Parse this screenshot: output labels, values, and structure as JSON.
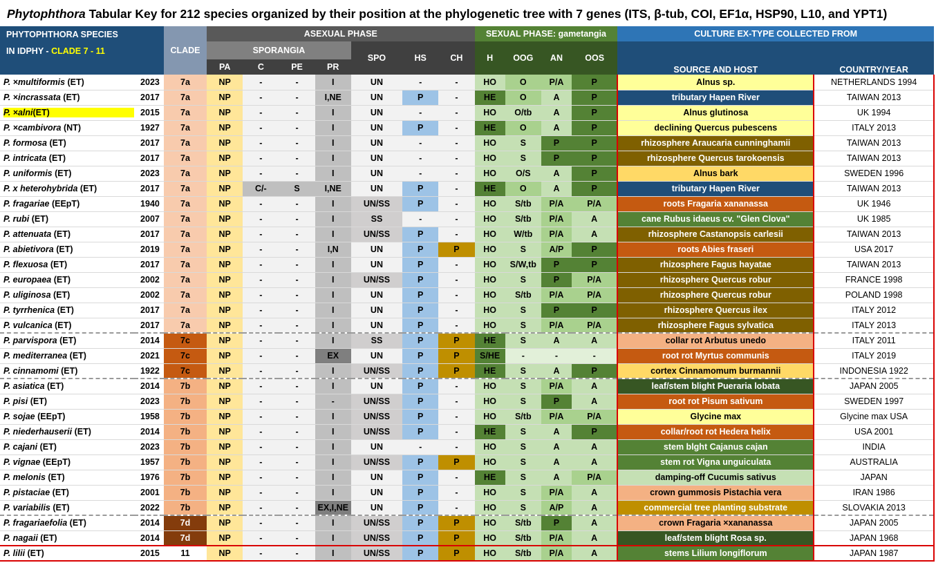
{
  "title": {
    "genus": "Phytophthora",
    "rest": " Tabular Key for 212 species organized by their position at the phylogenetic tree with 7 genes (ITS, β-tub, COI, EF1α, HSP90, L10, and YPT1)"
  },
  "header": {
    "species_line1": "PHYTOPHTHORA  SPECIES",
    "species_line2a": "IN IDPHY -  ",
    "species_line2b": "CLADE 7 - 11",
    "clade": "CLADE",
    "asexual": "ASEXUAL PHASE",
    "sporangia": "SPORANGIA",
    "sexual": "SEXUAL PHASE: gametangia",
    "culture": "CULTURE EX-TYPE COLLECTED FROM",
    "source": "SOURCE AND HOST",
    "country": "COUNTRY/YEAR",
    "cols": {
      "pa": "PA",
      "c": "C",
      "pe": "PE",
      "pr": "PR",
      "spo": "SPO",
      "hs": "HS",
      "ch": "CH",
      "h": "H",
      "oog": "OOG",
      "an": "AN",
      "oos": "OOS"
    }
  },
  "rows": [
    {
      "sp": "P. ×multiformis",
      "tag": "(ET)",
      "yr": "2023",
      "clade": "7a",
      "pa": "NP",
      "c": "-",
      "pe": "-",
      "pr": "I",
      "spo": "UN",
      "hs": "-",
      "ch": "-",
      "h": "HO",
      "oog": "O",
      "an": "P/A",
      "oos": "P",
      "src": "Alnus sp.",
      "ctry": "NETHERLANDS 1994"
    },
    {
      "sp": "P. ×incrassata",
      "tag": "(ET)",
      "yr": "2017",
      "clade": "7a",
      "pa": "NP",
      "c": "-",
      "pe": "-",
      "pr": "I,NE",
      "spo": "UN",
      "hs": "P",
      "ch": "-",
      "h": "HE",
      "oog": "O",
      "an": "A",
      "oos": "P",
      "src": "tributary Hapen River",
      "ctry": "TAIWAN 2013"
    },
    {
      "sp": "P. ×alni",
      "tag": "(ET)",
      "yr": "2015",
      "clade": "7a",
      "pa": "NP",
      "c": "-",
      "pe": "-",
      "pr": "I",
      "spo": "UN",
      "hs": "-",
      "ch": "-",
      "h": "HO",
      "oog": "O/tb",
      "an": "A",
      "oos": "P",
      "src": "Alnus glutinosa",
      "ctry": "UK 1994"
    },
    {
      "sp": "P. ×cambivora",
      "tag": "(NT)",
      "yr": "1927",
      "clade": "7a",
      "pa": "NP",
      "c": "-",
      "pe": "-",
      "pr": "I",
      "spo": "UN",
      "hs": "P",
      "ch": "-",
      "h": "HE",
      "oog": "O",
      "an": "A",
      "oos": "P",
      "src": "declining Quercus pubescens",
      "ctry": "ITALY 2013"
    },
    {
      "sp": "P. formosa",
      "tag": "(ET)",
      "yr": "2017",
      "clade": "7a",
      "pa": "NP",
      "c": "-",
      "pe": "-",
      "pr": "I",
      "spo": "UN",
      "hs": "-",
      "ch": "-",
      "h": "HO",
      "oog": "S",
      "an": "P",
      "oos": "P",
      "src": "rhizosphere Araucaria cunninghamii",
      "ctry": "TAIWAN 2013"
    },
    {
      "sp": "P. intricata",
      "tag": "(ET)",
      "yr": "2017",
      "clade": "7a",
      "pa": "NP",
      "c": "-",
      "pe": "-",
      "pr": "I",
      "spo": "UN",
      "hs": "-",
      "ch": "-",
      "h": "HO",
      "oog": "S",
      "an": "P",
      "oos": "P",
      "src": "rhizosphere Quercus tarokoensis",
      "ctry": "TAIWAN 2013"
    },
    {
      "sp": "P. uniformis",
      "tag": "(ET)",
      "yr": "2023",
      "clade": "7a",
      "pa": "NP",
      "c": "-",
      "pe": "-",
      "pr": "I",
      "spo": "UN",
      "hs": "-",
      "ch": "-",
      "h": "HO",
      "oog": "O/S",
      "an": "A",
      "oos": "P",
      "src": "Alnus bark",
      "ctry": "SWEDEN 1996"
    },
    {
      "sp": "P. x heterohybrida",
      "tag": "(ET)",
      "yr": "2017",
      "clade": "7a",
      "pa": "NP",
      "c": "C/-",
      "pe": "S",
      "pr": "I,NE",
      "spo": "UN",
      "hs": "P",
      "ch": "-",
      "h": "HE",
      "oog": "O",
      "an": "A",
      "oos": "P",
      "src": "tributary Hapen River",
      "ctry": "TAIWAN 2013"
    },
    {
      "sp": "P. fragariae",
      "tag": "(EEpT)",
      "yr": "1940",
      "clade": "7a",
      "pa": "NP",
      "c": "-",
      "pe": "-",
      "pr": "I",
      "spo": "UN/SS",
      "hs": "P",
      "ch": "-",
      "h": "HO",
      "oog": "S/tb",
      "an": "P/A",
      "oos": "P/A",
      "src": "roots Fragaria xananassa",
      "ctry": "UK 1946"
    },
    {
      "sp": "P. rubi",
      "tag": "(ET)",
      "yr": "2007",
      "clade": "7a",
      "pa": "NP",
      "c": "-",
      "pe": "-",
      "pr": "I",
      "spo": "SS",
      "hs": "-",
      "ch": "-",
      "h": "HO",
      "oog": "S/tb",
      "an": "P/A",
      "oos": "A",
      "src": "cane Rubus idaeus cv. \"Glen Clova\"",
      "ctry": "UK 1985"
    },
    {
      "sp": "P. attenuata",
      "tag": "(ET)",
      "yr": "2017",
      "clade": "7a",
      "pa": "NP",
      "c": "-",
      "pe": "-",
      "pr": "I",
      "spo": "UN/SS",
      "hs": "P",
      "ch": "-",
      "h": "HO",
      "oog": "W/tb",
      "an": "P/A",
      "oos": "A",
      "src": "rhizosphere Castanopsis carlesii",
      "ctry": "TAIWAN 2013"
    },
    {
      "sp": "P. abietivora",
      "tag": "(ET)",
      "yr": "2019",
      "clade": "7a",
      "pa": "NP",
      "c": "-",
      "pe": "-",
      "pr": "I,N",
      "spo": "UN",
      "hs": "P",
      "ch": "P",
      "h": "HO",
      "oog": "S",
      "an": "A/P",
      "oos": "P",
      "src": "roots Abies fraseri",
      "ctry": "USA 2017"
    },
    {
      "sp": "P. flexuosa",
      "tag": "(ET)",
      "yr": "2017",
      "clade": "7a",
      "pa": "NP",
      "c": "-",
      "pe": "-",
      "pr": "I",
      "spo": "UN",
      "hs": "P",
      "ch": "-",
      "h": "HO",
      "oog": "S/W,tb",
      "an": "P",
      "oos": "P",
      "src": "rhizosphere Fagus hayatae",
      "ctry": "TAIWAN 2013"
    },
    {
      "sp": "P. europaea",
      "tag": "(ET)",
      "yr": "2002",
      "clade": "7a",
      "pa": "NP",
      "c": "-",
      "pe": "-",
      "pr": "I",
      "spo": "UN/SS",
      "hs": "P",
      "ch": "-",
      "h": "HO",
      "oog": "S",
      "an": "P",
      "oos": "P/A",
      "src": "rhizosphere Quercus robur",
      "ctry": "FRANCE 1998"
    },
    {
      "sp": "P. uliginosa",
      "tag": "(ET)",
      "yr": "2002",
      "clade": "7a",
      "pa": "NP",
      "c": "-",
      "pe": "-",
      "pr": "I",
      "spo": "UN",
      "hs": "P",
      "ch": "-",
      "h": "HO",
      "oog": "S/tb",
      "an": "P/A",
      "oos": "P/A",
      "src": "rhizosphere Quercus robur",
      "ctry": "POLAND 1998"
    },
    {
      "sp": "P. tyrrhenica",
      "tag": "(ET)",
      "yr": "2017",
      "clade": "7a",
      "pa": "NP",
      "c": "-",
      "pe": "-",
      "pr": "I",
      "spo": "UN",
      "hs": "P",
      "ch": "-",
      "h": "HO",
      "oog": "S",
      "an": "P",
      "oos": "P",
      "src": "rhizosphere Quercus ilex",
      "ctry": "ITALY 2012"
    },
    {
      "sp": "P. vulcanica",
      "tag": "(ET)",
      "yr": "2017",
      "clade": "7a",
      "pa": "NP",
      "c": "-",
      "pe": "-",
      "pr": "I",
      "spo": "UN",
      "hs": "P",
      "ch": "-",
      "h": "HO",
      "oog": "S",
      "an": "P/A",
      "oos": "P/A",
      "src": "rhizosphere Fagus sylvatica",
      "ctry": "ITALY 2013"
    },
    {
      "sp": "P. parvispora",
      "tag": "(ET)",
      "yr": "2014",
      "clade": "7c",
      "pa": "NP",
      "c": "-",
      "pe": "-",
      "pr": "I",
      "spo": "SS",
      "hs": "P",
      "ch": "P",
      "h": "HE",
      "oog": "S",
      "an": "A",
      "oos": "A",
      "src": "collar rot Arbutus unedo",
      "ctry": "ITALY 2011"
    },
    {
      "sp": "P. mediterranea",
      "tag": "(ET)",
      "yr": "2021",
      "clade": "7c",
      "pa": "NP",
      "c": "-",
      "pe": "-",
      "pr": "EX",
      "spo": "UN",
      "hs": "P",
      "ch": "P",
      "h": "S/HE",
      "oog": "-",
      "an": "-",
      "oos": "-",
      "src": "root rot Myrtus communis",
      "ctry": "ITALY 2019"
    },
    {
      "sp": "P. cinnamomi",
      "tag": "(ET)",
      "yr": "1922",
      "clade": "7c",
      "pa": "NP",
      "c": "-",
      "pe": "-",
      "pr": "I",
      "spo": "UN/SS",
      "hs": "P",
      "ch": "P",
      "h": "HE",
      "oog": "S",
      "an": "A",
      "oos": "P",
      "src": "cortex Cinnamomum burmannii",
      "ctry": "INDONESIA 1922"
    },
    {
      "sp": "P. asiatica",
      "tag": "(ET)",
      "yr": "2014",
      "clade": "7b",
      "pa": "NP",
      "c": "-",
      "pe": "-",
      "pr": "I",
      "spo": "UN",
      "hs": "P",
      "ch": "-",
      "h": "HO",
      "oog": "S",
      "an": "P/A",
      "oos": "A",
      "src": "leaf/stem blight Pueraria lobata",
      "ctry": "JAPAN 2005"
    },
    {
      "sp": "P. pisi",
      "tag": "(ET)",
      "yr": "2023",
      "clade": "7b",
      "pa": "NP",
      "c": "-",
      "pe": "-",
      "pr": "-",
      "spo": "UN/SS",
      "hs": "P",
      "ch": "-",
      "h": "HO",
      "oog": "S",
      "an": "P",
      "oos": "A",
      "src": "root rot Pisum sativum",
      "ctry": "SWEDEN 1997"
    },
    {
      "sp": "P. sojae",
      "tag": "(EEpT)",
      "yr": "1958",
      "clade": "7b",
      "pa": "NP",
      "c": "-",
      "pe": "-",
      "pr": "I",
      "spo": "UN/SS",
      "hs": "P",
      "ch": "-",
      "h": "HO",
      "oog": "S/tb",
      "an": "P/A",
      "oos": "P/A",
      "src": "Glycine max",
      "ctry": "Glycine max USA"
    },
    {
      "sp": "P. niederhauserii",
      "tag": "(ET)",
      "yr": "2014",
      "clade": "7b",
      "pa": "NP",
      "c": "-",
      "pe": "-",
      "pr": "I",
      "spo": "UN/SS",
      "hs": "P",
      "ch": "-",
      "h": "HE",
      "oog": "S",
      "an": "A",
      "oos": "P",
      "src": "collar/root rot Hedera helix",
      "ctry": "USA 2001"
    },
    {
      "sp": "P. cajani",
      "tag": "(ET)",
      "yr": "2023",
      "clade": "7b",
      "pa": "NP",
      "c": "-",
      "pe": "-",
      "pr": "I",
      "spo": "UN",
      "hs": "-",
      "ch": "-",
      "h": "HO",
      "oog": "S",
      "an": "A",
      "oos": "A",
      "src": "stem blght Cajanus cajan",
      "ctry": "INDIA"
    },
    {
      "sp": "P. vignae",
      "tag": "(EEpT)",
      "yr": "1957",
      "clade": "7b",
      "pa": "NP",
      "c": "-",
      "pe": "-",
      "pr": "I",
      "spo": "UN/SS",
      "hs": "P",
      "ch": "P",
      "h": "HO",
      "oog": "S",
      "an": "A",
      "oos": "A",
      "src": "stem rot Vigna unguiculata",
      "ctry": "AUSTRALIA"
    },
    {
      "sp": "P. melonis",
      "tag": "(ET)",
      "yr": "1976",
      "clade": "7b",
      "pa": "NP",
      "c": "-",
      "pe": "-",
      "pr": "I",
      "spo": "UN",
      "hs": "P",
      "ch": "-",
      "h": "HE",
      "oog": "S",
      "an": "A",
      "oos": "P/A",
      "src": "damping-off Cucumis sativus",
      "ctry": "JAPAN"
    },
    {
      "sp": "P. pistaciae",
      "tag": "(ET)",
      "yr": "2001",
      "clade": "7b",
      "pa": "NP",
      "c": "-",
      "pe": "-",
      "pr": "I",
      "spo": "UN",
      "hs": "P",
      "ch": "-",
      "h": "HO",
      "oog": "S",
      "an": "P/A",
      "oos": "A",
      "src": "crown gummosis Pistachia vera",
      "ctry": "IRAN 1986"
    },
    {
      "sp": "P. variabilis",
      "tag": "(ET)",
      "yr": "2022",
      "clade": "7b",
      "pa": "NP",
      "c": "-",
      "pe": "-",
      "pr": "EX,I,NE",
      "spo": "UN",
      "hs": "P",
      "ch": "-",
      "h": "HO",
      "oog": "S",
      "an": "A/P",
      "oos": "A",
      "src": "commercial tree planting substrate",
      "ctry": "SLOVAKIA 2013"
    },
    {
      "sp": "P. fragariaefolia",
      "tag": "(ET)",
      "yr": "2014",
      "clade": "7d",
      "pa": "NP",
      "c": "-",
      "pe": "-",
      "pr": "I",
      "spo": "UN/SS",
      "hs": "P",
      "ch": "P",
      "h": "HO",
      "oog": "S/tb",
      "an": "P",
      "oos": "A",
      "src": "crown Fragaria ×xananassa",
      "ctry": "JAPAN 2005"
    },
    {
      "sp": "P. nagaii",
      "tag": "(ET)",
      "yr": "2014",
      "clade": "7d",
      "pa": "NP",
      "c": "-",
      "pe": "-",
      "pr": "I",
      "spo": "UN/SS",
      "hs": "P",
      "ch": "P",
      "h": "HO",
      "oog": "S/tb",
      "an": "P/A",
      "oos": "A",
      "src": "leaf/stem blight Rosa sp.",
      "ctry": "JAPAN 1968"
    },
    {
      "sp": "P. lilii",
      "tag": "(ET)",
      "yr": "2015",
      "clade": "11",
      "pa": "NP",
      "c": "-",
      "pe": "-",
      "pr": "I",
      "spo": "UN/SS",
      "hs": "P",
      "ch": "P",
      "h": "HO",
      "oog": "S/tb",
      "an": "P/A",
      "oos": "A",
      "src": "stems Lilium longiflorum",
      "ctry": "JAPAN 1987"
    }
  ],
  "colors": {
    "header_blue": "#1f4e79",
    "header_green": "#548235",
    "highlight_yellow": "#ffff00",
    "border_red": "#d90000"
  }
}
